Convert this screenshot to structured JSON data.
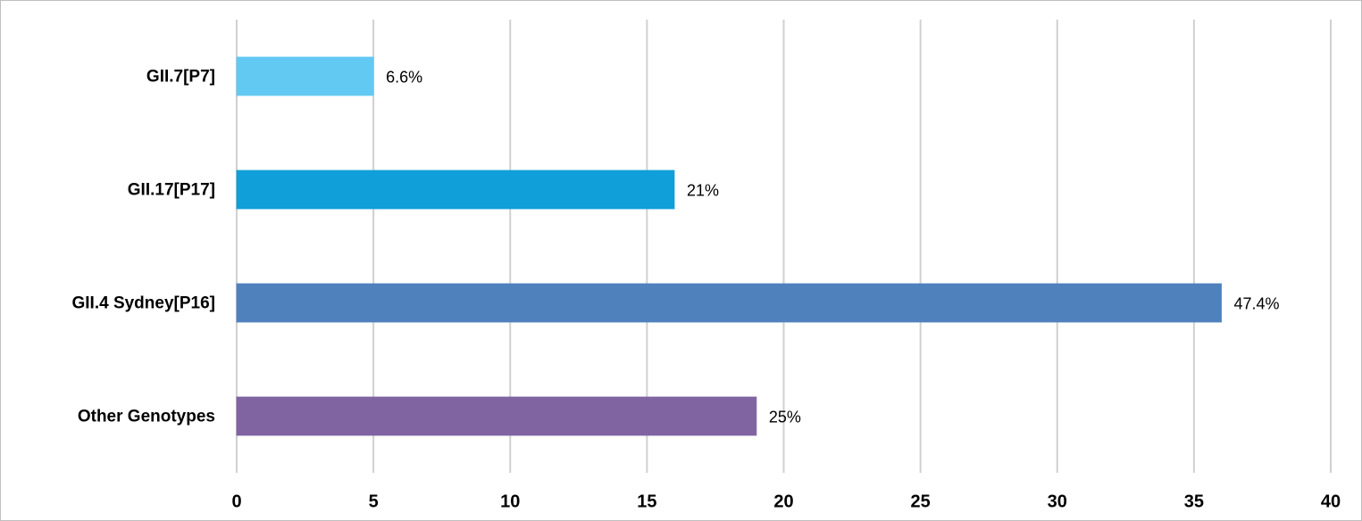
{
  "chart_data": {
    "type": "bar",
    "orientation": "horizontal",
    "categories": [
      "GII.7[P7]",
      "GII.17[P17]",
      "GII.4 Sydney[P16]",
      "Other Genotypes"
    ],
    "values": [
      5,
      16,
      36,
      19
    ],
    "value_labels": [
      "6.6%",
      "21%",
      "47.4%",
      "25%"
    ],
    "colors": [
      "#62c9f2",
      "#109fd8",
      "#4f81bd",
      "#8064a2"
    ],
    "xlim": [
      0,
      40
    ],
    "xticks": [
      0,
      5,
      10,
      15,
      20,
      25,
      30,
      35,
      40
    ],
    "grid": true
  }
}
